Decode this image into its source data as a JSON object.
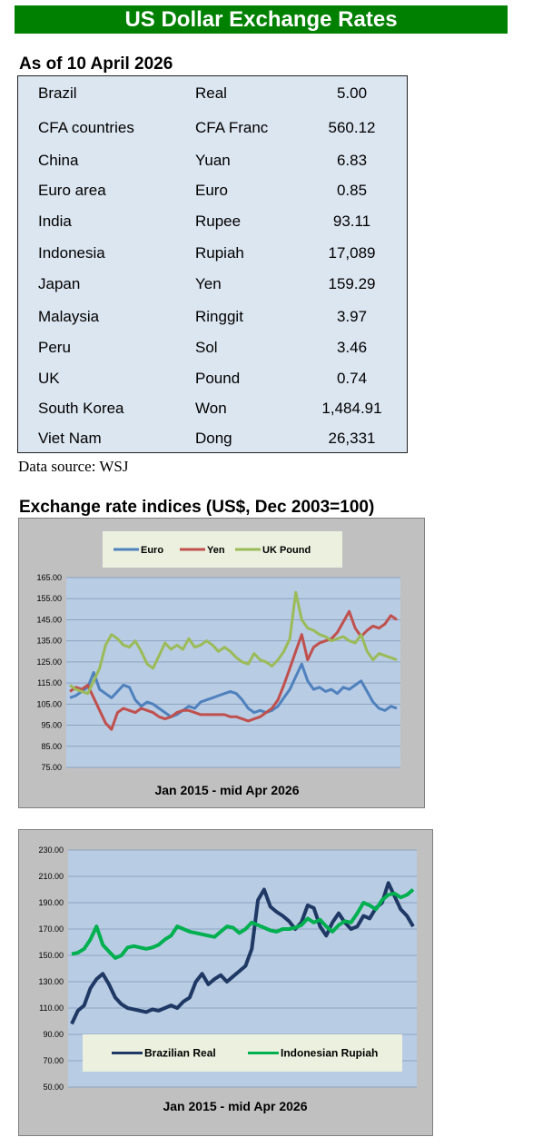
{
  "header": {
    "title": "US Dollar Exchange Rates"
  },
  "as_of": "As of 10 April 2026",
  "rates": [
    {
      "country": "Brazil",
      "currency": "Real",
      "value": "5.00"
    },
    {
      "country": "CFA countries",
      "currency": "CFA Franc",
      "value": "560.12"
    },
    {
      "country": "China",
      "currency": "Yuan",
      "value": "6.83"
    },
    {
      "country": "Euro area",
      "currency": "Euro",
      "value": "0.85"
    },
    {
      "country": "India",
      "currency": "Rupee",
      "value": "93.11"
    },
    {
      "country": "Indonesia",
      "currency": "Rupiah",
      "value": "17,089"
    },
    {
      "country": "Japan",
      "currency": "Yen",
      "value": "159.29"
    },
    {
      "country": "Malaysia",
      "currency": "Ringgit",
      "value": "3.97"
    },
    {
      "country": "Peru",
      "currency": "Sol",
      "value": "3.46"
    },
    {
      "country": "UK",
      "currency": "Pound",
      "value": "0.74"
    },
    {
      "country": "South Korea",
      "currency": "Won",
      "value": "1,484.91"
    },
    {
      "country": "Viet Nam",
      "currency": "Dong",
      "value": "26,331"
    }
  ],
  "source": "Data source: WSJ",
  "section_title": "Exchange rate indices (US$, Dec 2003=100)",
  "colors": {
    "banner": "#008000",
    "table_bg": "#dce6f1",
    "plot_bg": "#b8cce4",
    "legend_bg": "#ebf1de",
    "outer_bg": "#c0c0c0"
  },
  "chart_data": [
    {
      "type": "line",
      "xlabel": "Jan 2015 - mid Apr 2026",
      "ylim": [
        75,
        165
      ],
      "yticks": [
        "75.00",
        "85.00",
        "95.00",
        "105.00",
        "115.00",
        "125.00",
        "135.00",
        "145.00",
        "155.00",
        "165.00"
      ],
      "legend_position": "top",
      "grid": true,
      "series": [
        {
          "name": "Euro",
          "color": "#4f81bd",
          "values": [
            108,
            109,
            111,
            113,
            120,
            112,
            110,
            108,
            111,
            114,
            113,
            107,
            104,
            106,
            105,
            103,
            101,
            99,
            100,
            102,
            104,
            103,
            106,
            107,
            108,
            109,
            110,
            111,
            110,
            107,
            103,
            101,
            102,
            101,
            102,
            104,
            108,
            112,
            118,
            124,
            116,
            112,
            113,
            111,
            112,
            110,
            113,
            112,
            114,
            116,
            111,
            106,
            103,
            102,
            104,
            103
          ]
        },
        {
          "name": "Yen",
          "color": "#c0504d",
          "values": [
            111,
            113,
            112,
            114,
            108,
            102,
            96,
            93,
            101,
            103,
            102,
            101,
            103,
            102,
            101,
            99,
            98,
            99,
            101,
            102,
            102,
            101,
            100,
            100,
            100,
            100,
            100,
            99,
            99,
            98,
            97,
            98,
            99,
            101,
            103,
            107,
            114,
            122,
            130,
            138,
            126,
            132,
            134,
            135,
            136,
            139,
            144,
            149,
            141,
            137,
            140,
            142,
            141,
            143,
            147,
            145
          ]
        },
        {
          "name": "UK Pound",
          "color": "#9bbb59",
          "values": [
            114,
            112,
            111,
            110,
            116,
            122,
            133,
            138,
            136,
            133,
            132,
            135,
            130,
            124,
            122,
            128,
            134,
            131,
            133,
            131,
            136,
            132,
            133,
            135,
            133,
            130,
            132,
            130,
            127,
            125,
            124,
            129,
            126,
            125,
            123,
            126,
            130,
            136,
            158,
            145,
            141,
            140,
            138,
            137,
            135,
            136,
            137,
            135,
            134,
            138,
            130,
            126,
            129,
            128,
            127,
            126
          ]
        }
      ]
    },
    {
      "type": "line",
      "xlabel": "Jan 2015 - mid Apr 2026",
      "ylim": [
        50,
        230
      ],
      "yticks": [
        "50.00",
        "70.00",
        "90.00",
        "110.00",
        "130.00",
        "150.00",
        "170.00",
        "190.00",
        "210.00",
        "230.00"
      ],
      "legend_position": "bottom",
      "grid": true,
      "series": [
        {
          "name": "Brazilian Real",
          "color": "#1f3864",
          "values": [
            98,
            108,
            112,
            125,
            132,
            136,
            128,
            118,
            113,
            110,
            109,
            108,
            107,
            109,
            108,
            110,
            112,
            110,
            115,
            118,
            130,
            136,
            128,
            132,
            135,
            130,
            134,
            138,
            142,
            155,
            192,
            200,
            187,
            183,
            180,
            176,
            170,
            175,
            188,
            186,
            172,
            165,
            175,
            182,
            175,
            170,
            172,
            180,
            178,
            186,
            190,
            205,
            195,
            185,
            180,
            172
          ]
        },
        {
          "name": "Indonesian Rupiah",
          "color": "#00b050",
          "values": [
            151,
            152,
            155,
            162,
            172,
            158,
            153,
            148,
            150,
            156,
            157,
            156,
            155,
            156,
            158,
            162,
            165,
            172,
            170,
            168,
            167,
            166,
            165,
            164,
            168,
            172,
            171,
            167,
            170,
            175,
            173,
            171,
            169,
            168,
            170,
            170,
            171,
            173,
            178,
            175,
            177,
            172,
            168,
            173,
            176,
            175,
            182,
            190,
            188,
            185,
            192,
            196,
            197,
            194,
            196,
            200
          ]
        }
      ]
    }
  ]
}
